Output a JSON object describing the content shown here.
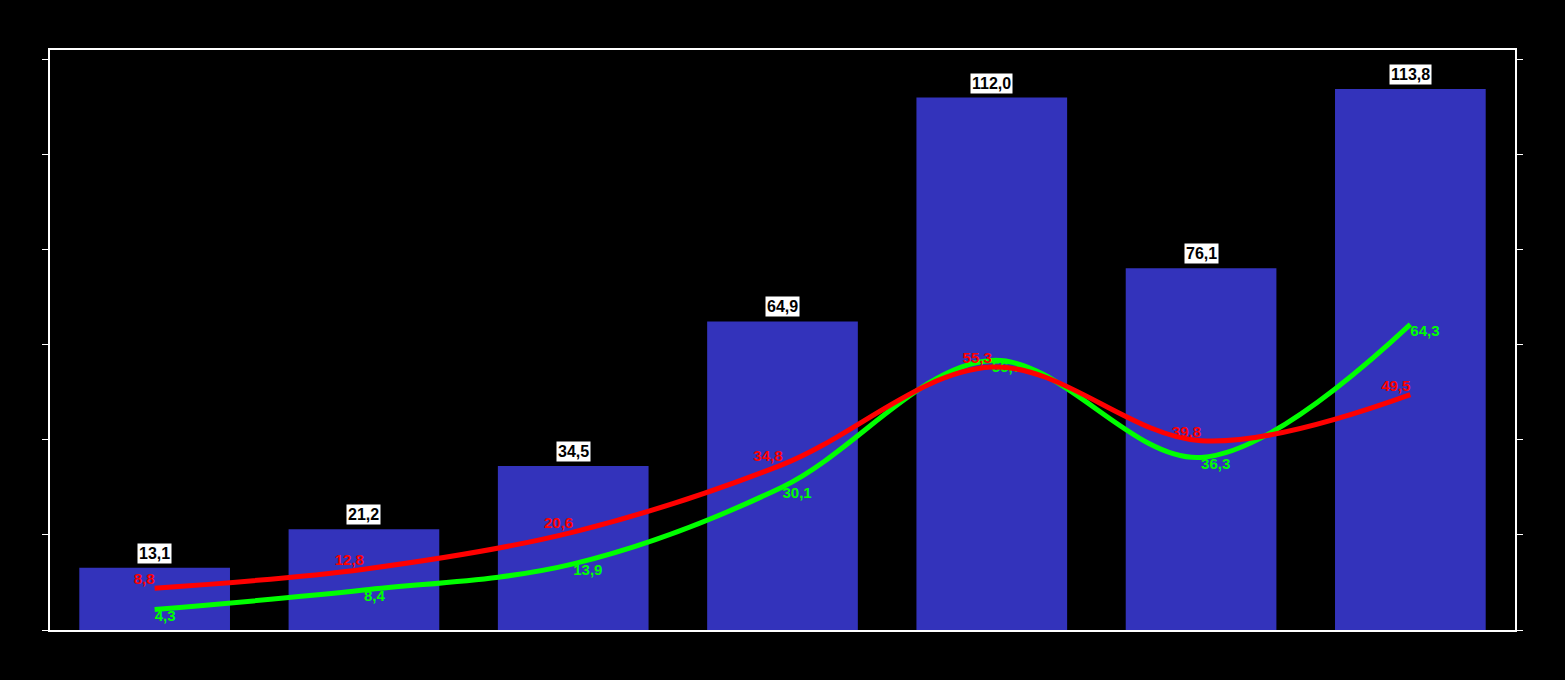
{
  "chart_data": {
    "type": "bar",
    "categories": [
      null,
      null,
      null,
      null,
      null,
      null,
      null
    ],
    "series": [
      {
        "type": "bar",
        "color": "#3333BB",
        "values": [
          13.1,
          21.2,
          34.5,
          64.9,
          112.0,
          76.1,
          113.8
        ],
        "value_labels": [
          "13,1",
          "21,2",
          "34,5",
          "64,9",
          "112,0",
          "76,1",
          "113,8"
        ]
      },
      {
        "type": "line",
        "color": "#00FF00",
        "values": [
          4.3,
          8.4,
          13.9,
          30.1,
          56.7,
          36.3,
          64.3
        ],
        "value_labels": [
          "4,3",
          "8,4",
          "13,9",
          "30,1",
          "56,7",
          "36,3",
          "64,3"
        ]
      },
      {
        "type": "line",
        "color": "#FF0000",
        "values": [
          8.8,
          12.8,
          20.6,
          34.8,
          55.3,
          39.8,
          49.5
        ],
        "value_labels": [
          "8,8",
          "12,8",
          "20,6",
          "34,8",
          "55,3",
          "39,8",
          "49,5"
        ]
      }
    ],
    "ylim": [
      0,
      122
    ],
    "yticks": [
      0,
      20,
      40,
      60,
      80,
      100,
      120
    ],
    "tick_labels": false,
    "data_labels": true,
    "grid": false
  }
}
